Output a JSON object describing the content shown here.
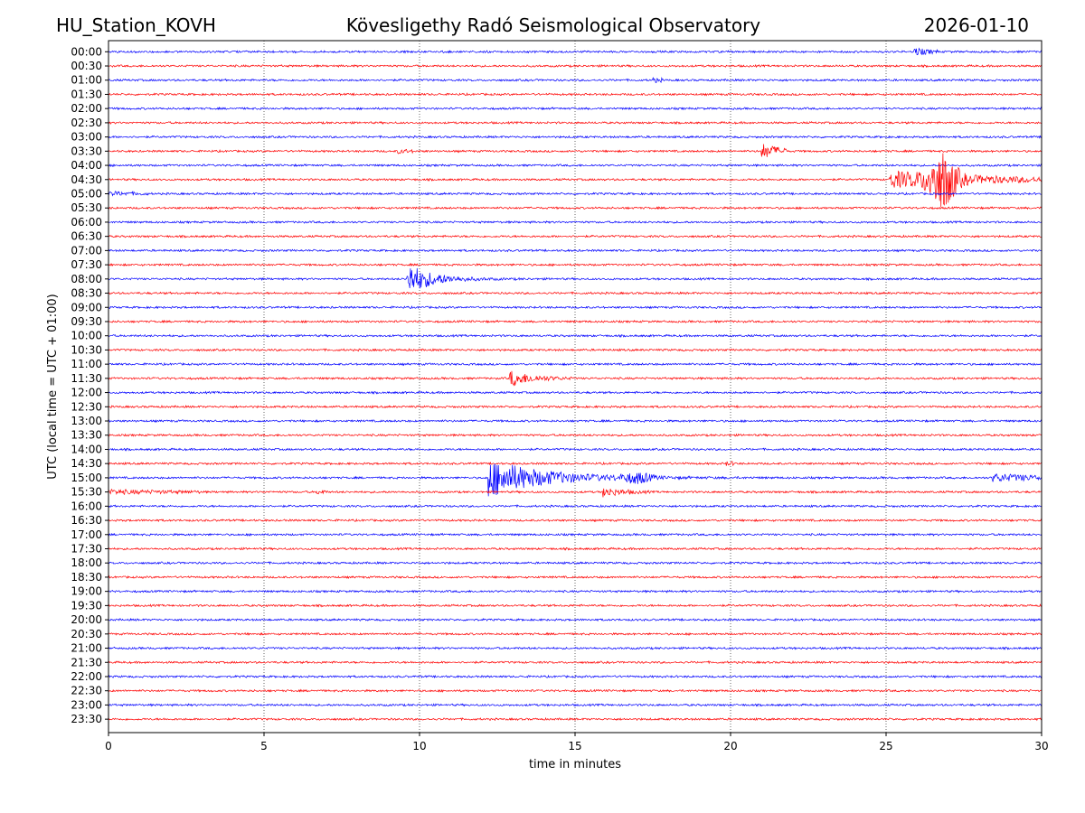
{
  "header": {
    "station": "HU_Station_KOVH",
    "observatory": "Kövesligethy Radó Seismological Observatory",
    "date": "2026-01-10"
  },
  "chart_data": {
    "type": "line",
    "subtype": "helicorder",
    "title": "Kövesligethy Radó Seismological Observatory",
    "xlabel": "time in minutes",
    "ylabel": "UTC (local time = UTC + 01:00)",
    "xlim": [
      0,
      30
    ],
    "xticks": [
      0,
      5,
      10,
      15,
      20,
      25,
      30
    ],
    "xtick_labels": [
      "0",
      "5",
      "10",
      "15",
      "20",
      "25",
      "30"
    ],
    "grid": "vertical dotted lines at each x tick",
    "row_labels": [
      "00:00",
      "00:30",
      "01:00",
      "01:30",
      "02:00",
      "02:30",
      "03:00",
      "03:30",
      "04:00",
      "04:30",
      "05:00",
      "05:30",
      "06:00",
      "06:30",
      "07:00",
      "07:30",
      "08:00",
      "08:30",
      "09:00",
      "09:30",
      "10:00",
      "10:30",
      "11:00",
      "11:30",
      "12:00",
      "12:30",
      "13:00",
      "13:30",
      "14:00",
      "14:30",
      "15:00",
      "15:30",
      "16:00",
      "16:30",
      "17:00",
      "17:30",
      "18:00",
      "18:30",
      "19:00",
      "19:30",
      "20:00",
      "20:30",
      "21:00",
      "21:30",
      "22:00",
      "22:30",
      "23:00",
      "23:30"
    ],
    "trace_colors": [
      "#0000ff",
      "#ff0000"
    ],
    "noise_amplitude": 1,
    "events": [
      {
        "row": 0,
        "start_min": 25.9,
        "amp": 4,
        "dur_min": 0.8,
        "decay": 2.0
      },
      {
        "row": 2,
        "start_min": 17.5,
        "amp": 2,
        "dur_min": 0.3,
        "decay": 2.0
      },
      {
        "row": 7,
        "start_min": 9.3,
        "amp": 2,
        "dur_min": 0.5,
        "decay": 2.0
      },
      {
        "row": 7,
        "start_min": 21.0,
        "amp": 8,
        "dur_min": 0.8,
        "decay": 1.5
      },
      {
        "row": 9,
        "start_min": 25.1,
        "amp": 9,
        "dur_min": 4.9,
        "decay": 0.3,
        "peak_min": 26.8,
        "peak_amp": 28
      },
      {
        "row": 10,
        "start_min": 0.0,
        "amp": 2,
        "dur_min": 1.3,
        "decay": 1.0
      },
      {
        "row": 16,
        "start_min": 9.6,
        "amp": 18,
        "dur_min": 7.0,
        "decay": 1.3
      },
      {
        "row": 23,
        "start_min": 12.9,
        "amp": 9,
        "dur_min": 2.0,
        "decay": 1.4
      },
      {
        "row": 29,
        "start_min": 19.8,
        "amp": 2,
        "dur_min": 0.4,
        "decay": 2.0
      },
      {
        "row": 30,
        "start_min": 12.2,
        "amp": 22,
        "dur_min": 17.8,
        "decay": 0.6,
        "peak_min": 17.0,
        "peak_amp": 5
      },
      {
        "row": 30,
        "start_min": 28.4,
        "amp": 4,
        "dur_min": 1.6,
        "decay": 0.5
      },
      {
        "row": 31,
        "start_min": 0.0,
        "amp": 2,
        "dur_min": 3.0,
        "decay": 0.4
      },
      {
        "row": 31,
        "start_min": 6.7,
        "amp": 2,
        "dur_min": 0.3,
        "decay": 2.0
      },
      {
        "row": 31,
        "start_min": 15.9,
        "amp": 5,
        "dur_min": 1.5,
        "decay": 1.5
      }
    ]
  }
}
